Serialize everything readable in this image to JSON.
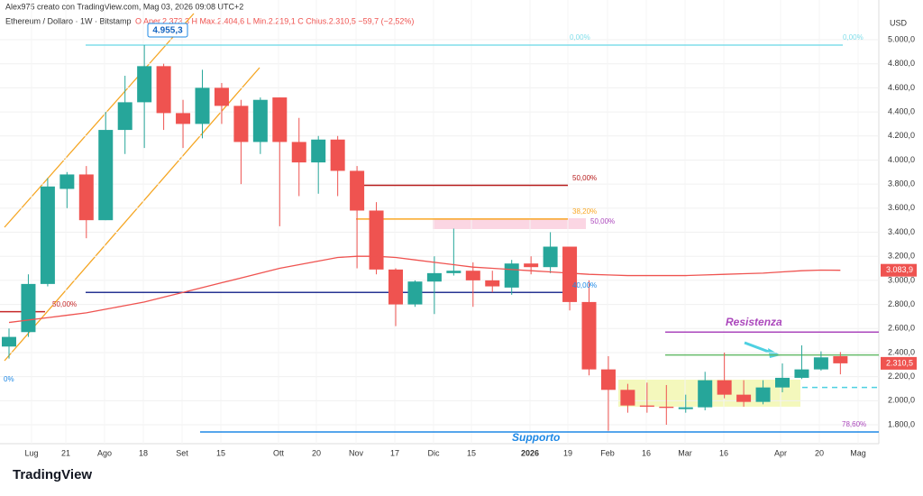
{
  "header": {
    "author": "Alex975 creato con TradingView.com, Mag 03, 2026 09:08 UTC+2",
    "symbol": "Ethereum / Dollaro · 1W · Bitstamp",
    "ohlc": "O Aper.2.373,3  H Max.2.404,6  L Min.2.219,1  C Chius.2.310,5  −59,7 (−2,52%)",
    "currency": "USD",
    "logo": "TradingView"
  },
  "chart_data": {
    "type": "candlestick",
    "open": [
      2450,
      2570,
      2970,
      3760,
      3880,
      3500,
      4250,
      4480,
      4780,
      4390,
      4300,
      4600,
      4450,
      4150,
      4520,
      4150,
      3980,
      4170,
      3910,
      3580,
      3090,
      2800,
      2990,
      3060,
      3080,
      3000,
      2940,
      3140,
      3110,
      3280,
      2820,
      2260,
      2090,
      1960,
      1950,
      1930,
      1945,
      2170,
      2050,
      1990,
      2110,
      2190,
      2260,
      2370
    ],
    "high": [
      2600,
      3050,
      3850,
      3900,
      3950,
      4400,
      4700,
      4955.3,
      4800,
      4500,
      4750,
      4640,
      4500,
      4520,
      4520,
      4350,
      4200,
      4200,
      3950,
      3650,
      3100,
      3000,
      3200,
      3430,
      3150,
      3080,
      3170,
      3200,
      3400,
      3280,
      3000,
      2370,
      2140,
      2150,
      2130,
      2050,
      2240,
      2400,
      2170,
      2170,
      2310,
      2460,
      2410,
      2404.6
    ],
    "low": [
      2350,
      2530,
      2950,
      3600,
      3350,
      3500,
      4050,
      4100,
      4250,
      4100,
      4180,
      4300,
      3800,
      4050,
      3450,
      3700,
      3720,
      3700,
      3100,
      3050,
      2620,
      2780,
      2720,
      3040,
      2780,
      2900,
      2880,
      3050,
      3060,
      2750,
      2210,
      1750,
      1900,
      1900,
      1800,
      1900,
      1920,
      2020,
      1950,
      1970,
      2070,
      2180,
      2250,
      2219.1
    ],
    "close": [
      2530,
      2970,
      3780,
      3880,
      3500,
      4250,
      4480,
      4780,
      4390,
      4300,
      4600,
      4450,
      4150,
      4500,
      4150,
      3980,
      4170,
      3910,
      3580,
      3090,
      2800,
      2990,
      3060,
      3080,
      3000,
      2950,
      3140,
      3110,
      3280,
      2820,
      2260,
      2090,
      1960,
      1950,
      1940,
      1945,
      2170,
      2050,
      1990,
      2110,
      2190,
      2260,
      2360,
      2310.5
    ],
    "ma": [
      2650,
      2670,
      2690,
      2710,
      2730,
      2760,
      2790,
      2820,
      2860,
      2900,
      2940,
      2980,
      3020,
      3060,
      3100,
      3130,
      3160,
      3190,
      3200,
      3200,
      3190,
      3170,
      3150,
      3130,
      3110,
      3100,
      3090,
      3080,
      3070,
      3060,
      3050,
      3045,
      3040,
      3040,
      3040,
      3040,
      3045,
      3050,
      3055,
      3060,
      3070,
      3080,
      3085,
      3083.9
    ],
    "colors": {
      "up": "#26a69a",
      "down": "#ef5350",
      "ma": "#ef5350"
    },
    "ylim": [
      1600,
      5180
    ],
    "yticks": [
      {
        "value": 1800,
        "label": "1.800,0"
      },
      {
        "value": 2000,
        "label": "2.000,0"
      },
      {
        "value": 2200,
        "label": "2.200,0"
      },
      {
        "value": 2400,
        "label": "2.400,0"
      },
      {
        "value": 2600,
        "label": "2.600,0"
      },
      {
        "value": 2800,
        "label": "2.800,0"
      },
      {
        "value": 3000,
        "label": "3.000,0"
      },
      {
        "value": 3200,
        "label": "3.200,0"
      },
      {
        "value": 3400,
        "label": "3.400,0"
      },
      {
        "value": 3600,
        "label": "3.600,0"
      },
      {
        "value": 3800,
        "label": "3.800,0"
      },
      {
        "value": 4000,
        "label": "4.000,0"
      },
      {
        "value": 4200,
        "label": "4.200,0"
      },
      {
        "value": 4400,
        "label": "4.400,0"
      },
      {
        "value": 4600,
        "label": "4.600,0"
      },
      {
        "value": 4800,
        "label": "4.800,0"
      },
      {
        "value": 5000,
        "label": "5.000,0"
      }
    ],
    "xlabels": [
      "Lug",
      "21",
      "Ago",
      "18",
      "Set",
      "15",
      "Ott",
      "20",
      "Nov",
      "17",
      "Dic",
      "15",
      "2026",
      "19",
      "Feb",
      "16",
      "Mar",
      "16",
      "Apr",
      "20",
      "Mag"
    ],
    "grid": true,
    "levels": [
      {
        "value": 4955.3,
        "color": "#80deea"
      },
      {
        "value": 3790,
        "color": "#b71c1c"
      },
      {
        "value": 3510,
        "color": "#f9a825"
      },
      {
        "value": 2900,
        "color": "#283593"
      },
      {
        "value": 2740,
        "color": "#c62828"
      },
      {
        "value": 2570,
        "color": "#ab47bc"
      },
      {
        "value": 2380,
        "color": "#66bb6a"
      },
      {
        "value": 2110,
        "color": "#4dd0e1"
      },
      {
        "value": 1740,
        "color": "#1e88e5"
      }
    ],
    "annotations": {
      "high_label": "4.955,3",
      "resistance": "Resistenza",
      "support": "Supporto",
      "fib": [
        "0,00%",
        "0,00%",
        "50,00%",
        "38,20%",
        "50,00%",
        "50,00%",
        "40,00%",
        "78,60%",
        "0%"
      ]
    },
    "last_price_label": "2.310,5",
    "ma_label": "3.083,9"
  }
}
